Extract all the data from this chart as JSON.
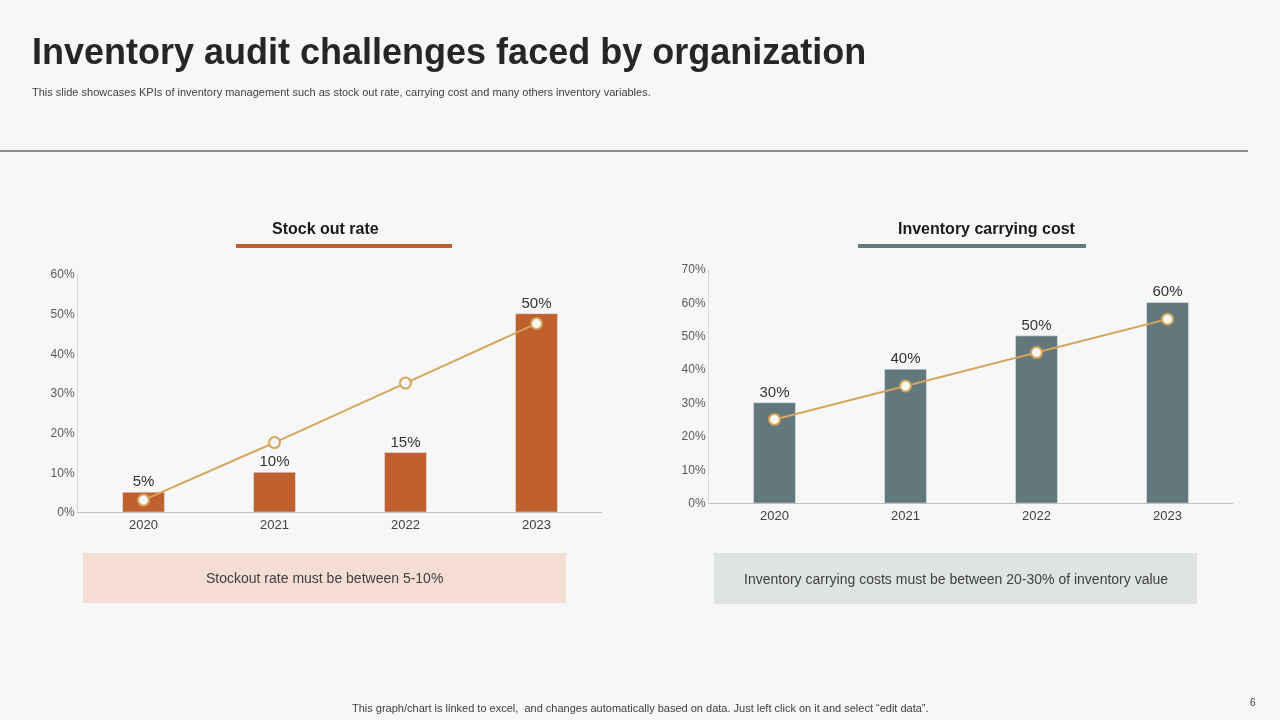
{
  "chart_data": [
    {
      "type": "other",
      "title": "Inventory audit challenges faced by organization",
      "subtitle": "This slide showcases KPIs of inventory management such as stock out rate, carrying cost and many others inventory variables.",
      "annotations": [
        "This graph/chart is linked to excel,  and changes automatically based on data. Just left click on it and select “edit data”.",
        "6"
      ]
    },
    {
      "type": "bar",
      "title": "Stock out rate",
      "categories": [
        "2020",
        "2021",
        "2022",
        "2023"
      ],
      "series": [
        {
          "type": "bar",
          "color": "#c0602f",
          "values": [
            5,
            10,
            15,
            50
          ],
          "value_labels": [
            "5%",
            "10%",
            "15%",
            "50%"
          ]
        },
        {
          "type": "line",
          "color": "#d4a55a",
          "values": [
            3,
            17.5,
            32.5,
            47.5
          ],
          "marker": "circle"
        }
      ],
      "ylim": [
        0,
        60
      ],
      "yticks": [
        {
          "value": 0,
          "label": "0%"
        },
        {
          "value": 10,
          "label": "10%"
        },
        {
          "value": 20,
          "label": "20%"
        },
        {
          "value": 30,
          "label": "30%"
        },
        {
          "value": 40,
          "label": "40%"
        },
        {
          "value": 50,
          "label": "50%"
        },
        {
          "value": 60,
          "label": "60%"
        }
      ],
      "grid": false,
      "annotations": [
        "Stockout rate must be between 5-10%"
      ]
    },
    {
      "type": "bar",
      "title": "Inventory carrying cost",
      "categories": [
        "2020",
        "2021",
        "2022",
        "2023"
      ],
      "series": [
        {
          "type": "bar",
          "color": "#62787c",
          "values": [
            30,
            40,
            50,
            60
          ],
          "value_labels": [
            "30%",
            "40%",
            "50%",
            "60%"
          ]
        },
        {
          "type": "line",
          "color": "#d4a55a",
          "values": [
            25,
            35,
            45,
            55
          ],
          "marker": "circle"
        }
      ],
      "ylim": [
        0,
        70
      ],
      "yticks": [
        {
          "value": 0,
          "label": "0%"
        },
        {
          "value": 10,
          "label": "10%"
        },
        {
          "value": 20,
          "label": "20%"
        },
        {
          "value": 30,
          "label": "30%"
        },
        {
          "value": 40,
          "label": "40%"
        },
        {
          "value": 50,
          "label": "50%"
        },
        {
          "value": 60,
          "label": "60%"
        },
        {
          "value": 70,
          "label": "70%"
        }
      ],
      "grid": false,
      "annotations": [
        "Inventory carrying costs must be between 20-30% of inventory value"
      ]
    }
  ]
}
